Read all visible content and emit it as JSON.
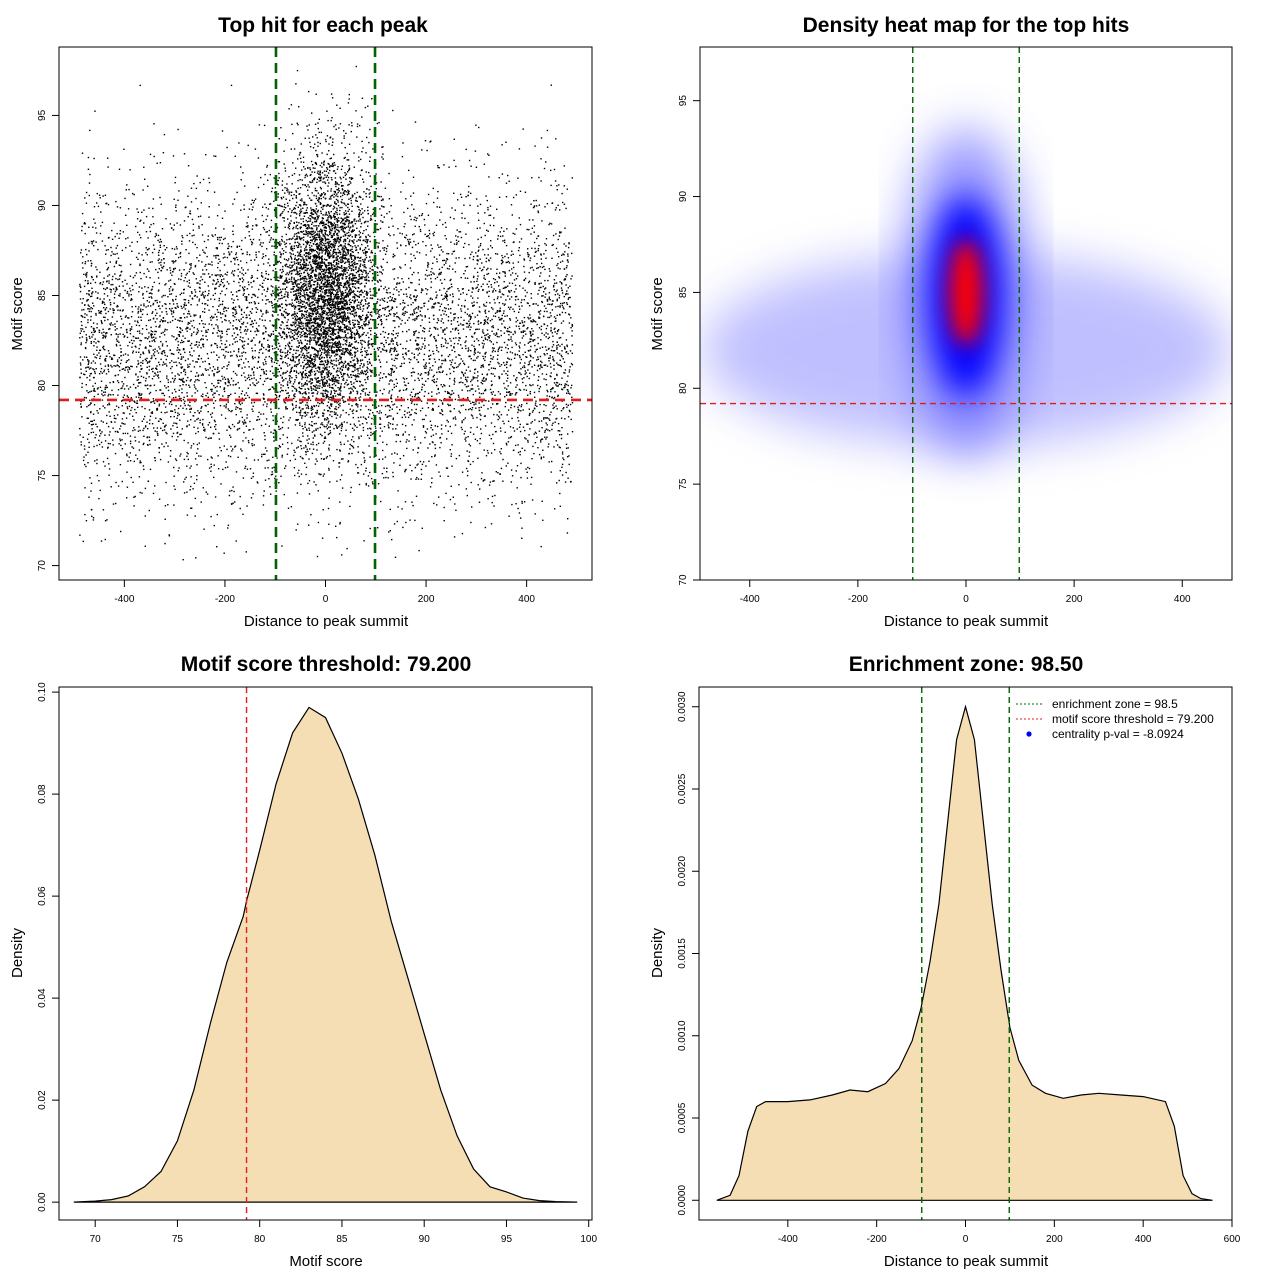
{
  "chart_data": [
    {
      "type": "scatter",
      "title": "Top hit for each peak",
      "xlabel": "Distance to peak summit",
      "ylabel": "Motif score",
      "xlim": [
        -530,
        530
      ],
      "ylim": [
        69.2,
        98.8
      ],
      "xticks": [
        -400,
        -200,
        0,
        200,
        400
      ],
      "xtick_labels": [
        "-400",
        "-200",
        "0",
        "200",
        "400"
      ],
      "yticks": [
        70,
        75,
        80,
        85,
        90,
        95
      ],
      "ytick_labels": [
        "70",
        "75",
        "80",
        "85",
        "90",
        "95"
      ],
      "vlines": [
        {
          "x": -98.5,
          "color": "#006400",
          "style": "dashed"
        },
        {
          "x": 98.5,
          "color": "#006400",
          "style": "dashed"
        }
      ],
      "hlines": [
        {
          "y": 79.2,
          "color": "#e41a1c",
          "style": "dashed"
        }
      ],
      "point_color": "#000000",
      "distribution": {
        "uniform_component": {
          "x_range": [
            -490,
            490
          ],
          "y_mean": 82.5,
          "y_sd": 4.3
        },
        "central_component": {
          "x_mean": 0,
          "x_sd": 45,
          "y_mean": 85.5,
          "y_sd": 3.6
        },
        "approx_points_shown": 11000
      },
      "grid": false
    },
    {
      "type": "heatmap",
      "title": "Density heat map for the top hits",
      "xlabel": "Distance to peak summit",
      "ylabel": "Motif score",
      "xlim": [
        -492,
        492
      ],
      "ylim": [
        70,
        97.8
      ],
      "xticks": [
        -400,
        -200,
        0,
        200,
        400
      ],
      "xtick_labels": [
        "-400",
        "-200",
        "0",
        "200",
        "400"
      ],
      "yticks": [
        70,
        75,
        80,
        85,
        90,
        95
      ],
      "ytick_labels": [
        "70",
        "75",
        "80",
        "85",
        "90",
        "95"
      ],
      "colors": [
        "#ffffff",
        "#0000ff",
        "#ff0000"
      ],
      "peak": {
        "x": 0,
        "y": 85
      },
      "background_band": {
        "y_center": 82,
        "x_range": [
          -490,
          490
        ]
      },
      "vlines": [
        {
          "x": -98.5,
          "color": "#006400",
          "style": "dashed"
        },
        {
          "x": 98.5,
          "color": "#006400",
          "style": "dashed"
        }
      ],
      "hlines": [
        {
          "y": 79.2,
          "color": "#e41a1c",
          "style": "dashed"
        }
      ],
      "grid": false
    },
    {
      "type": "area",
      "title": "Motif score threshold: 79.200",
      "xlabel": "Motif score",
      "ylabel": "Density",
      "xlim": [
        67.8,
        100.2
      ],
      "ylim": [
        -0.0035,
        0.101
      ],
      "xticks": [
        70,
        75,
        80,
        85,
        90,
        95,
        100
      ],
      "xtick_labels": [
        "70",
        "75",
        "80",
        "85",
        "90",
        "95",
        "100"
      ],
      "yticks": [
        0,
        0.02,
        0.04,
        0.06,
        0.08,
        0.1
      ],
      "ytick_labels": [
        "0.00",
        "0.02",
        "0.04",
        "0.06",
        "0.08",
        "0.10"
      ],
      "fill_color": "#f5deb3",
      "x": [
        68.7,
        70,
        71,
        72,
        73,
        74,
        75,
        76,
        77,
        78,
        79,
        79.2,
        80,
        81,
        82,
        83,
        84,
        85,
        86,
        87,
        88,
        89,
        90,
        91,
        92,
        93,
        94,
        95,
        96,
        97,
        98,
        99.3
      ],
      "y": [
        0,
        0.0002,
        0.0005,
        0.0012,
        0.003,
        0.006,
        0.012,
        0.022,
        0.035,
        0.047,
        0.056,
        0.059,
        0.069,
        0.082,
        0.092,
        0.097,
        0.095,
        0.088,
        0.079,
        0.068,
        0.055,
        0.044,
        0.033,
        0.022,
        0.013,
        0.0065,
        0.003,
        0.002,
        0.0008,
        0.0003,
        0.0001,
        0
      ],
      "vlines": [
        {
          "x": 79.2,
          "color": "#e41a1c",
          "style": "dashed"
        }
      ],
      "grid": false
    },
    {
      "type": "area",
      "title": "Enrichment zone: 98.50",
      "xlabel": "Distance to peak summit",
      "ylabel": "Density",
      "xlim": [
        -600,
        600
      ],
      "ylim": [
        -0.00012,
        0.00312
      ],
      "xticks": [
        -400,
        -200,
        0,
        200,
        400,
        600
      ],
      "xtick_labels": [
        "-400",
        "-200",
        "0",
        "200",
        "400",
        "600"
      ],
      "yticks": [
        0,
        0.0005,
        0.001,
        0.0015,
        0.002,
        0.0025,
        0.003
      ],
      "ytick_labels": [
        "0.0000",
        "0.0005",
        "0.0010",
        "0.0015",
        "0.0020",
        "0.0025",
        "0.0030"
      ],
      "fill_color": "#f5deb3",
      "x": [
        -560,
        -530,
        -510,
        -490,
        -470,
        -450,
        -400,
        -350,
        -300,
        -260,
        -220,
        -180,
        -150,
        -120,
        -100,
        -80,
        -60,
        -40,
        -20,
        0,
        20,
        40,
        60,
        80,
        100,
        120,
        150,
        180,
        220,
        260,
        300,
        350,
        400,
        450,
        470,
        490,
        510,
        530,
        556
      ],
      "y": [
        0,
        3e-05,
        0.00015,
        0.00042,
        0.00057,
        0.0006,
        0.0006,
        0.00061,
        0.00064,
        0.00067,
        0.00066,
        0.00071,
        0.0008,
        0.00097,
        0.00117,
        0.00145,
        0.0018,
        0.0023,
        0.0028,
        0.003,
        0.0028,
        0.0023,
        0.0018,
        0.0014,
        0.00105,
        0.00085,
        0.0007,
        0.00065,
        0.00062,
        0.00064,
        0.00065,
        0.00064,
        0.00063,
        0.0006,
        0.00045,
        0.00015,
        4e-05,
        1e-05,
        0
      ],
      "vlines": [
        {
          "x": -98.5,
          "color": "#006400",
          "style": "dashed"
        },
        {
          "x": 98.5,
          "color": "#006400",
          "style": "dashed"
        }
      ],
      "legend": {
        "placement": "top-right",
        "items": [
          {
            "label": "enrichment zone = 98.5",
            "color": "#006400",
            "style": "dotted-line"
          },
          {
            "label": "motif score threshold = 79.200",
            "color": "#e41a1c",
            "style": "dotted-line"
          },
          {
            "label": "centrality p-val = -8.0924",
            "color": "#0000ff",
            "style": "point"
          }
        ]
      },
      "grid": false
    }
  ]
}
